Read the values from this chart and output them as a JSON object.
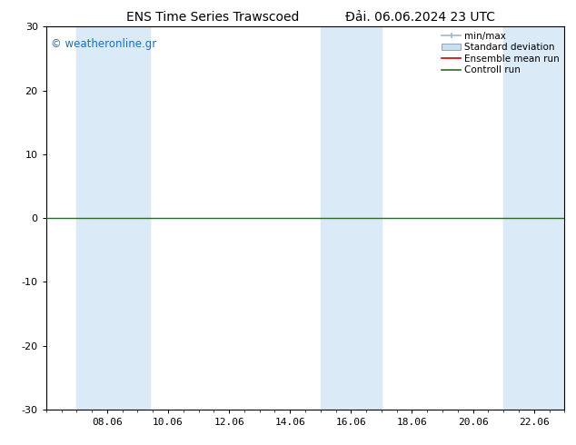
{
  "title_left": "ENS Time Series Trawscoed",
  "title_right": "Đải. 06.06.2024 23 UTC",
  "ylim": [
    -30,
    30
  ],
  "yticks": [
    -30,
    -20,
    -10,
    0,
    10,
    20,
    30
  ],
  "x_tick_labels": [
    "08.06",
    "10.06",
    "12.06",
    "14.06",
    "16.06",
    "18.06",
    "20.06",
    "22.06"
  ],
  "x_tick_positions": [
    2,
    4,
    6,
    8,
    10,
    12,
    14,
    16
  ],
  "xlim": [
    0,
    17
  ],
  "watermark": "© weatheronline.gr",
  "background_color": "#ffffff",
  "plot_bg_color": "#ffffff",
  "band_color": "#daeaf7",
  "band_positions": [
    [
      1.0,
      2.0
    ],
    [
      2.0,
      3.4
    ],
    [
      9.0,
      11.0
    ],
    [
      15.0,
      17.0
    ]
  ],
  "zero_line_color": "#2d6a2d",
  "title_fontsize": 10,
  "tick_fontsize": 8,
  "watermark_color": "#1a6ec9",
  "legend_fontsize": 7.5,
  "minmax_color": "#a0b8d0",
  "stddev_color": "#c8dff0",
  "ensemble_color": "#cc0000",
  "control_color": "#2d6a2d"
}
